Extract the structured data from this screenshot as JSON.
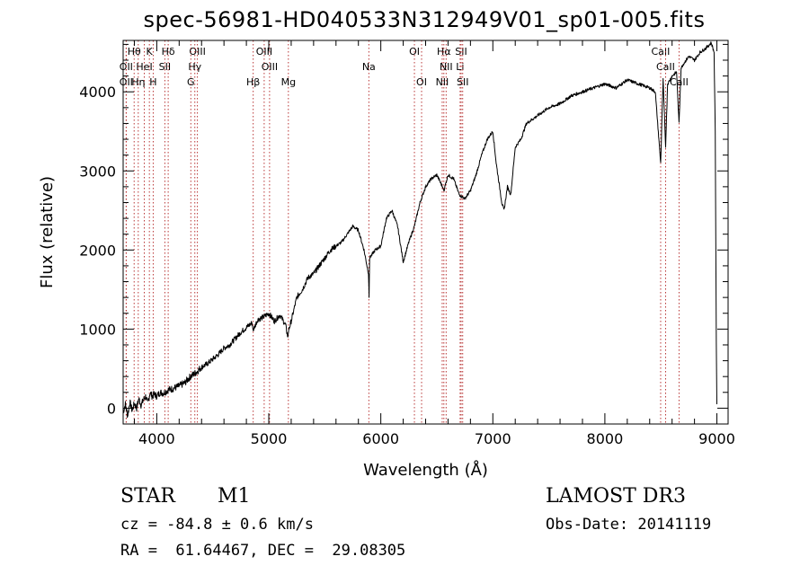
{
  "chart_data": {
    "type": "line",
    "title": "spec-56981-HD040533N312949V01_sp01-005.fits",
    "xlabel": "Wavelength (Å)",
    "ylabel": "Flux (relative)",
    "xlim": [
      3700,
      9100
    ],
    "ylim": [
      -200,
      4650
    ],
    "xticks": [
      4000,
      5000,
      6000,
      7000,
      8000,
      9000
    ],
    "yticks": [
      0,
      1000,
      2000,
      3000,
      4000
    ],
    "series": [
      {
        "name": "flux",
        "x": [
          3700,
          3720,
          3740,
          3760,
          3780,
          3800,
          3820,
          3840,
          3860,
          3880,
          3900,
          3920,
          3940,
          3960,
          3980,
          4000,
          4030,
          4060,
          4100,
          4150,
          4200,
          4250,
          4300,
          4350,
          4400,
          4450,
          4500,
          4550,
          4600,
          4650,
          4700,
          4750,
          4800,
          4850,
          4860,
          4900,
          4950,
          5000,
          5050,
          5100,
          5150,
          5170,
          5180,
          5200,
          5250,
          5300,
          5350,
          5400,
          5450,
          5500,
          5550,
          5600,
          5650,
          5700,
          5750,
          5800,
          5850,
          5890,
          5895,
          5900,
          5950,
          6000,
          6050,
          6100,
          6150,
          6200,
          6250,
          6300,
          6350,
          6400,
          6450,
          6500,
          6550,
          6563,
          6600,
          6650,
          6700,
          6750,
          6800,
          6850,
          6900,
          6950,
          7000,
          7030,
          7050,
          7080,
          7100,
          7130,
          7160,
          7200,
          7250,
          7300,
          7400,
          7500,
          7600,
          7700,
          7800,
          7900,
          8000,
          8100,
          8200,
          8300,
          8400,
          8450,
          8498,
          8520,
          8542,
          8560,
          8600,
          8640,
          8662,
          8680,
          8700,
          8750,
          8800,
          8850,
          8900,
          8950,
          8975,
          8985,
          8995,
          9000
        ],
        "y": [
          -50,
          50,
          -100,
          80,
          -30,
          60,
          0,
          120,
          40,
          100,
          150,
          60,
          200,
          150,
          180,
          150,
          200,
          190,
          230,
          250,
          280,
          320,
          400,
          450,
          520,
          560,
          620,
          680,
          760,
          800,
          880,
          960,
          1020,
          1080,
          980,
          1120,
          1150,
          1200,
          1100,
          1180,
          1050,
          900,
          1000,
          1100,
          1400,
          1500,
          1650,
          1700,
          1800,
          1900,
          2000,
          2050,
          2100,
          2200,
          2300,
          2250,
          2000,
          1700,
          1400,
          1900,
          2000,
          2050,
          2400,
          2500,
          2300,
          1850,
          2100,
          2300,
          2600,
          2800,
          2900,
          2950,
          2800,
          2750,
          2950,
          2900,
          2700,
          2650,
          2750,
          2950,
          3200,
          3400,
          3500,
          3100,
          2900,
          2600,
          2500,
          2800,
          2700,
          3300,
          3400,
          3600,
          3700,
          3800,
          3850,
          3950,
          4000,
          4050,
          4100,
          4050,
          4150,
          4100,
          4050,
          4000,
          3100,
          4150,
          3300,
          4100,
          4200,
          4250,
          3600,
          4300,
          4350,
          4450,
          4400,
          4500,
          4550,
          4620,
          4500,
          3500,
          800,
          50
        ]
      }
    ],
    "lines": [
      {
        "name": "Hθ",
        "wavelength": 3798,
        "row": 1
      },
      {
        "name": "K",
        "wavelength": 3934,
        "row": 1
      },
      {
        "name": "Hδ",
        "wavelength": 4102,
        "row": 1
      },
      {
        "name": "OIII",
        "wavelength": 4363,
        "row": 1
      },
      {
        "name": "OIII",
        "wavelength": 4959,
        "row": 1
      },
      {
        "name": "OI",
        "wavelength": 6300,
        "row": 1
      },
      {
        "name": "Hα",
        "wavelength": 6563,
        "row": 1
      },
      {
        "name": "SII",
        "wavelength": 6717,
        "row": 1
      },
      {
        "name": "CaII",
        "wavelength": 8498,
        "row": 1
      },
      {
        "name": "OII",
        "wavelength": 3727,
        "row": 2
      },
      {
        "name": "HeI",
        "wavelength": 3889,
        "row": 2
      },
      {
        "name": "SII",
        "wavelength": 4072,
        "row": 2
      },
      {
        "name": "Hγ",
        "wavelength": 4340,
        "row": 2
      },
      {
        "name": "OIII",
        "wavelength": 5007,
        "row": 2
      },
      {
        "name": "Na",
        "wavelength": 5893,
        "row": 2
      },
      {
        "name": "NII",
        "wavelength": 6583,
        "row": 2
      },
      {
        "name": "Li",
        "wavelength": 6708,
        "row": 2
      },
      {
        "name": "CaII",
        "wavelength": 8542,
        "row": 2
      },
      {
        "name": "OII",
        "wavelength": 3727,
        "row": 3
      },
      {
        "name": "Hη",
        "wavelength": 3835,
        "row": 3
      },
      {
        "name": "H",
        "wavelength": 3968,
        "row": 3
      },
      {
        "name": "G",
        "wavelength": 4304,
        "row": 3
      },
      {
        "name": "Hβ",
        "wavelength": 4861,
        "row": 3
      },
      {
        "name": "Mg",
        "wavelength": 5175,
        "row": 3
      },
      {
        "name": "OI",
        "wavelength": 6364,
        "row": 3
      },
      {
        "name": "NII",
        "wavelength": 6548,
        "row": 3
      },
      {
        "name": "SII",
        "wavelength": 6731,
        "row": 3
      },
      {
        "name": "CaII",
        "wavelength": 8662,
        "row": 3
      }
    ]
  },
  "info": {
    "class": "STAR",
    "subclass": "M1",
    "survey": "LAMOST DR3",
    "cz": "cz = -84.8 ± 0.6 km/s",
    "obs_date": "Obs-Date: 20141119",
    "coords": "RA =  61.64467, DEC =  29.08305"
  },
  "colors": {
    "line": "#000000",
    "marker": "#b22222",
    "axis": "#000000"
  }
}
